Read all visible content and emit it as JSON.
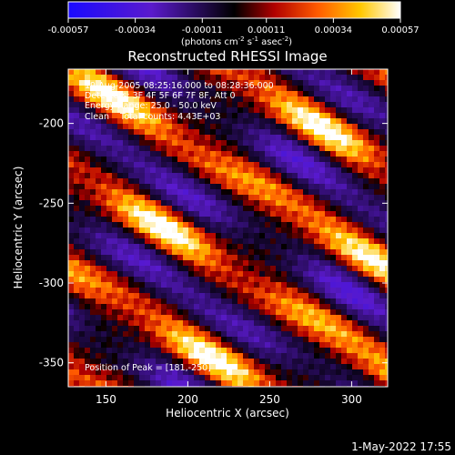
{
  "colorbar": {
    "tick_labels": [
      "-0.00057",
      "-0.00034",
      "-0.00011",
      "0.00011",
      "0.00034",
      "0.00057"
    ],
    "tick_values": [
      -0.00057,
      -0.00034,
      -0.00011,
      0.00011,
      0.00034,
      0.00057
    ],
    "range": [
      -0.00057,
      0.00057
    ],
    "unit_label": "(photons cm",
    "unit_exp1": "-2",
    "unit_mid": " s",
    "unit_exp2": "-1",
    "unit_mid2": " asec",
    "unit_exp3": "-2",
    "unit_close": ")",
    "stops": [
      "#1a0aff",
      "#5a1acc",
      "#000000",
      "#b00000",
      "#ff5a00",
      "#ffc800",
      "#ffffff"
    ]
  },
  "chart_data": {
    "type": "heatmap",
    "title": "Reconstructed RHESSI Image",
    "xlabel": "Heliocentric X (arcsec)",
    "ylabel": "Heliocentric Y (arcsec)",
    "xlim": [
      127,
      322
    ],
    "ylim": [
      -365,
      -166
    ],
    "x_ticks": [
      150,
      200,
      250,
      300
    ],
    "x_tick_labels": [
      "150",
      "200",
      "250",
      "300"
    ],
    "y_ticks": [
      -200,
      -250,
      -300,
      -350
    ],
    "y_tick_labels": [
      "-200",
      "-250",
      "-300",
      "-350"
    ],
    "annotations": [
      "19-Aug-2005 08:25:16.000 to 08:28:36.000",
      "Detectors: 3F 4F 5F 6F 7F 8F, Att 0",
      "Energy Range: 25.0 - 50.0 keV",
      "Clean    Total counts: 4.43E+03"
    ],
    "peak_label": "Position of Peak = [181,-250]",
    "peak": [
      181,
      -250
    ],
    "grid": false
  },
  "timestamp": "1-May-2022 17:55"
}
